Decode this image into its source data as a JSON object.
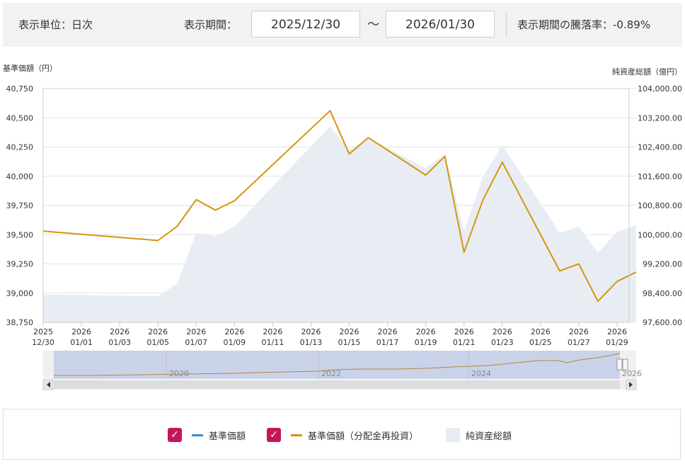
{
  "controls": {
    "unit_label": "表示単位：日次",
    "period_label": "表示期間：",
    "start_date": "2025/12/30",
    "tilde": "～",
    "end_date": "2026/01/30",
    "change_label": "表示期間の騰落率：",
    "change_value": "-0.89%"
  },
  "chart_data": {
    "type": "line",
    "left_axis_title": "基準価額（円）",
    "right_axis_title": "純資産総額（億円）",
    "y_left_range": [
      38750,
      40750
    ],
    "y_left_ticks": [
      "38,750",
      "39,000",
      "39,250",
      "39,500",
      "39,750",
      "40,000",
      "40,250",
      "40,500",
      "40,750"
    ],
    "y_right_range": [
      97600,
      104000
    ],
    "y_right_ticks": [
      "97,600.00",
      "98,400.00",
      "99,200.00",
      "100,000.00",
      "100,800.00",
      "101,600.00",
      "102,400.00",
      "103,200.00",
      "104,000.00"
    ],
    "x_ticks": [
      {
        "d": 0,
        "l1": "2025",
        "l2": "12/30"
      },
      {
        "d": 2,
        "l1": "2026",
        "l2": "01/01"
      },
      {
        "d": 4,
        "l1": "2026",
        "l2": "01/03"
      },
      {
        "d": 6,
        "l1": "2026",
        "l2": "01/05"
      },
      {
        "d": 8,
        "l1": "2026",
        "l2": "01/07"
      },
      {
        "d": 10,
        "l1": "2026",
        "l2": "01/09"
      },
      {
        "d": 12,
        "l1": "2026",
        "l2": "01/11"
      },
      {
        "d": 14,
        "l1": "2026",
        "l2": "01/13"
      },
      {
        "d": 16,
        "l1": "2026",
        "l2": "01/15"
      },
      {
        "d": 18,
        "l1": "2026",
        "l2": "01/17"
      },
      {
        "d": 20,
        "l1": "2026",
        "l2": "01/19"
      },
      {
        "d": 22,
        "l1": "2026",
        "l2": "01/21"
      },
      {
        "d": 24,
        "l1": "2026",
        "l2": "01/23"
      },
      {
        "d": 26,
        "l1": "2026",
        "l2": "01/25"
      },
      {
        "d": 28,
        "l1": "2026",
        "l2": "01/27"
      },
      {
        "d": 30,
        "l1": "2026",
        "l2": "01/29"
      }
    ],
    "x_max": 31,
    "grid": true,
    "series": [
      {
        "name": "基準価額（分配金再投資）",
        "color": "#d4960f",
        "axis": "left",
        "points": [
          [
            0,
            39530
          ],
          [
            6,
            39450
          ],
          [
            7,
            39570
          ],
          [
            8,
            39800
          ],
          [
            9,
            39710
          ],
          [
            10,
            39790
          ],
          [
            15,
            40560
          ],
          [
            16,
            40190
          ],
          [
            17,
            40330
          ],
          [
            20,
            40010
          ],
          [
            21,
            40170
          ],
          [
            22,
            39350
          ],
          [
            23,
            39800
          ],
          [
            24,
            40120
          ],
          [
            27,
            39190
          ],
          [
            28,
            39250
          ],
          [
            29,
            38930
          ],
          [
            30,
            39100
          ],
          [
            31,
            39180
          ]
        ]
      },
      {
        "name": "純資産総額",
        "color": "#e8edf4",
        "axis": "right",
        "type": "area",
        "points": [
          [
            0,
            98360
          ],
          [
            6,
            98320
          ],
          [
            7,
            98650
          ],
          [
            8,
            100050
          ],
          [
            9,
            99950
          ],
          [
            10,
            100220
          ],
          [
            15,
            102970
          ],
          [
            16,
            102320
          ],
          [
            17,
            102650
          ],
          [
            20,
            101820
          ],
          [
            21,
            102200
          ],
          [
            22,
            100100
          ],
          [
            23,
            101590
          ],
          [
            24,
            102460
          ],
          [
            27,
            100050
          ],
          [
            28,
            100220
          ],
          [
            29,
            99510
          ],
          [
            30,
            100070
          ],
          [
            31,
            100270
          ]
        ]
      }
    ],
    "navigator": {
      "labels": [
        "2020",
        "2022",
        "2024",
        "2026"
      ]
    }
  },
  "legend": [
    {
      "name": "基準価額",
      "checked": true,
      "color": "#2f8fd8",
      "type": "line"
    },
    {
      "name": "基準価額（分配金再投資）",
      "checked": true,
      "color": "#d4960f",
      "type": "line"
    },
    {
      "name": "純資産総額",
      "checked": false,
      "color": "#e8edf4",
      "type": "area"
    }
  ]
}
